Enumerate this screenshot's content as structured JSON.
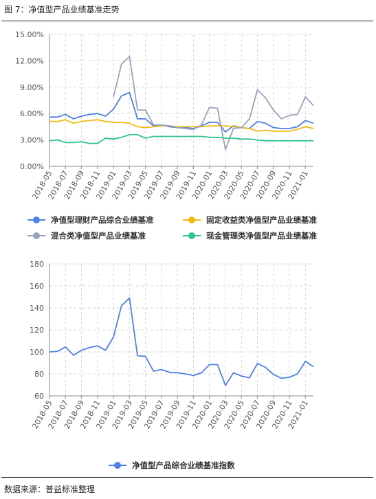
{
  "figure": {
    "title": "图 7：净值型产品业绩基准走势",
    "source": "数据来源：普益标准整理"
  },
  "colors": {
    "blue": "#4e7fe6",
    "yellow": "#f2b90f",
    "gray": "#98a3ba",
    "green": "#2ec58f",
    "grid": "#d9d9d9",
    "axis": "#888888"
  },
  "chart_data": [
    {
      "type": "line",
      "title": "",
      "xlabel": "",
      "ylabel": "",
      "x_tick_labels": [
        "2018-05",
        "2018-07",
        "2018-09",
        "2018-11",
        "2019-01",
        "2019-03",
        "2019-05",
        "2019-07",
        "2019-09",
        "2019-11",
        "2020-01",
        "2020-03",
        "2020-05",
        "2020-07",
        "2020-09",
        "2020-11",
        "2021-01"
      ],
      "y_tick_labels": [
        "0.00%",
        "3.00%",
        "6.00%",
        "9.00%",
        "12.00%",
        "15.00%"
      ],
      "ylim": [
        0,
        15
      ],
      "y_unit": "%",
      "grid": true,
      "legend_position": "bottom",
      "x": [
        "2018-05",
        "2018-06",
        "2018-07",
        "2018-08",
        "2018-09",
        "2018-10",
        "2018-11",
        "2018-12",
        "2019-01",
        "2019-02",
        "2019-03",
        "2019-04",
        "2019-05",
        "2019-06",
        "2019-07",
        "2019-08",
        "2019-09",
        "2019-10",
        "2019-11",
        "2019-12",
        "2020-01",
        "2020-02",
        "2020-03",
        "2020-04",
        "2020-05",
        "2020-06",
        "2020-07",
        "2020-08",
        "2020-09",
        "2020-10",
        "2020-11",
        "2020-12",
        "2021-01",
        "2021-02"
      ],
      "series": [
        {
          "name": "净值型理财产品综合业绩基准",
          "color": "#4e7fe6",
          "values": [
            5.6,
            5.6,
            5.9,
            5.4,
            5.7,
            5.9,
            6.0,
            5.7,
            6.5,
            8.0,
            8.4,
            5.4,
            5.4,
            4.6,
            4.7,
            4.5,
            4.4,
            4.4,
            4.3,
            4.6,
            5.0,
            5.0,
            3.9,
            4.6,
            4.4,
            4.3,
            5.1,
            4.9,
            4.4,
            4.3,
            4.3,
            4.5,
            5.2,
            4.9
          ]
        },
        {
          "name": "固定收益类净值型产品业绩基准",
          "color": "#f2b90f",
          "values": [
            5.1,
            5.1,
            5.3,
            4.9,
            5.1,
            5.2,
            5.3,
            5.1,
            5.0,
            5.0,
            4.9,
            4.5,
            4.4,
            4.5,
            4.6,
            4.6,
            4.5,
            4.5,
            4.5,
            4.5,
            4.6,
            4.6,
            4.6,
            4.5,
            4.4,
            4.3,
            4.0,
            4.1,
            4.0,
            4.0,
            4.0,
            4.2,
            4.5,
            4.3
          ]
        },
        {
          "name": "混合类净值型产品业绩基准",
          "color": "#98a3ba",
          "values": [
            null,
            null,
            null,
            null,
            null,
            null,
            null,
            null,
            7.9,
            11.6,
            12.5,
            6.4,
            6.4,
            4.7,
            4.7,
            4.6,
            4.4,
            4.3,
            4.2,
            4.7,
            6.7,
            6.6,
            1.9,
            4.3,
            4.4,
            5.4,
            8.7,
            7.8,
            6.4,
            5.4,
            5.8,
            5.9,
            7.9,
            6.9
          ]
        },
        {
          "name": "现金管理类净值型产品业绩基准",
          "color": "#2ec58f",
          "values": [
            2.9,
            3.0,
            2.7,
            2.7,
            2.8,
            2.6,
            2.6,
            3.2,
            3.1,
            3.3,
            3.6,
            3.6,
            3.2,
            3.4,
            3.4,
            3.4,
            3.4,
            3.4,
            3.4,
            3.4,
            3.3,
            3.3,
            3.2,
            3.2,
            3.1,
            3.1,
            3.0,
            2.9,
            2.9,
            2.9,
            2.9,
            2.9,
            2.9,
            2.9
          ]
        }
      ]
    },
    {
      "type": "line",
      "title": "",
      "xlabel": "",
      "ylabel": "",
      "x_tick_labels": [
        "2018-05",
        "2018-07",
        "2018-09",
        "2018-11",
        "2019-01",
        "2019-03",
        "2019-05",
        "2019-07",
        "2019-09",
        "2019-11",
        "2020-01",
        "2020-03",
        "2020-05",
        "2020-07",
        "2020-09",
        "2020-11",
        "2021-01"
      ],
      "y_tick_labels": [
        "60",
        "80",
        "100",
        "120",
        "140",
        "160",
        "180"
      ],
      "ylim": [
        60,
        180
      ],
      "grid": true,
      "legend_position": "bottom",
      "x": [
        "2018-05",
        "2018-06",
        "2018-07",
        "2018-08",
        "2018-09",
        "2018-10",
        "2018-11",
        "2018-12",
        "2019-01",
        "2019-02",
        "2019-03",
        "2019-04",
        "2019-05",
        "2019-06",
        "2019-07",
        "2019-08",
        "2019-09",
        "2019-10",
        "2019-11",
        "2019-12",
        "2020-01",
        "2020-02",
        "2020-03",
        "2020-04",
        "2020-05",
        "2020-06",
        "2020-07",
        "2020-08",
        "2020-09",
        "2020-10",
        "2020-11",
        "2020-12",
        "2021-01",
        "2021-02"
      ],
      "series": [
        {
          "name": "净值型产品综合业绩基准指数",
          "color": "#4e7fe6",
          "values": [
            100,
            100.5,
            104.5,
            97,
            101.5,
            104,
            105.5,
            101.5,
            113.5,
            142,
            149,
            96.5,
            96,
            82.5,
            84,
            81.5,
            81,
            80,
            78.5,
            81,
            88.5,
            88.5,
            69.5,
            81,
            78,
            76.5,
            89.5,
            86,
            79.5,
            76,
            77,
            80,
            91.5,
            86.5
          ]
        }
      ]
    }
  ]
}
